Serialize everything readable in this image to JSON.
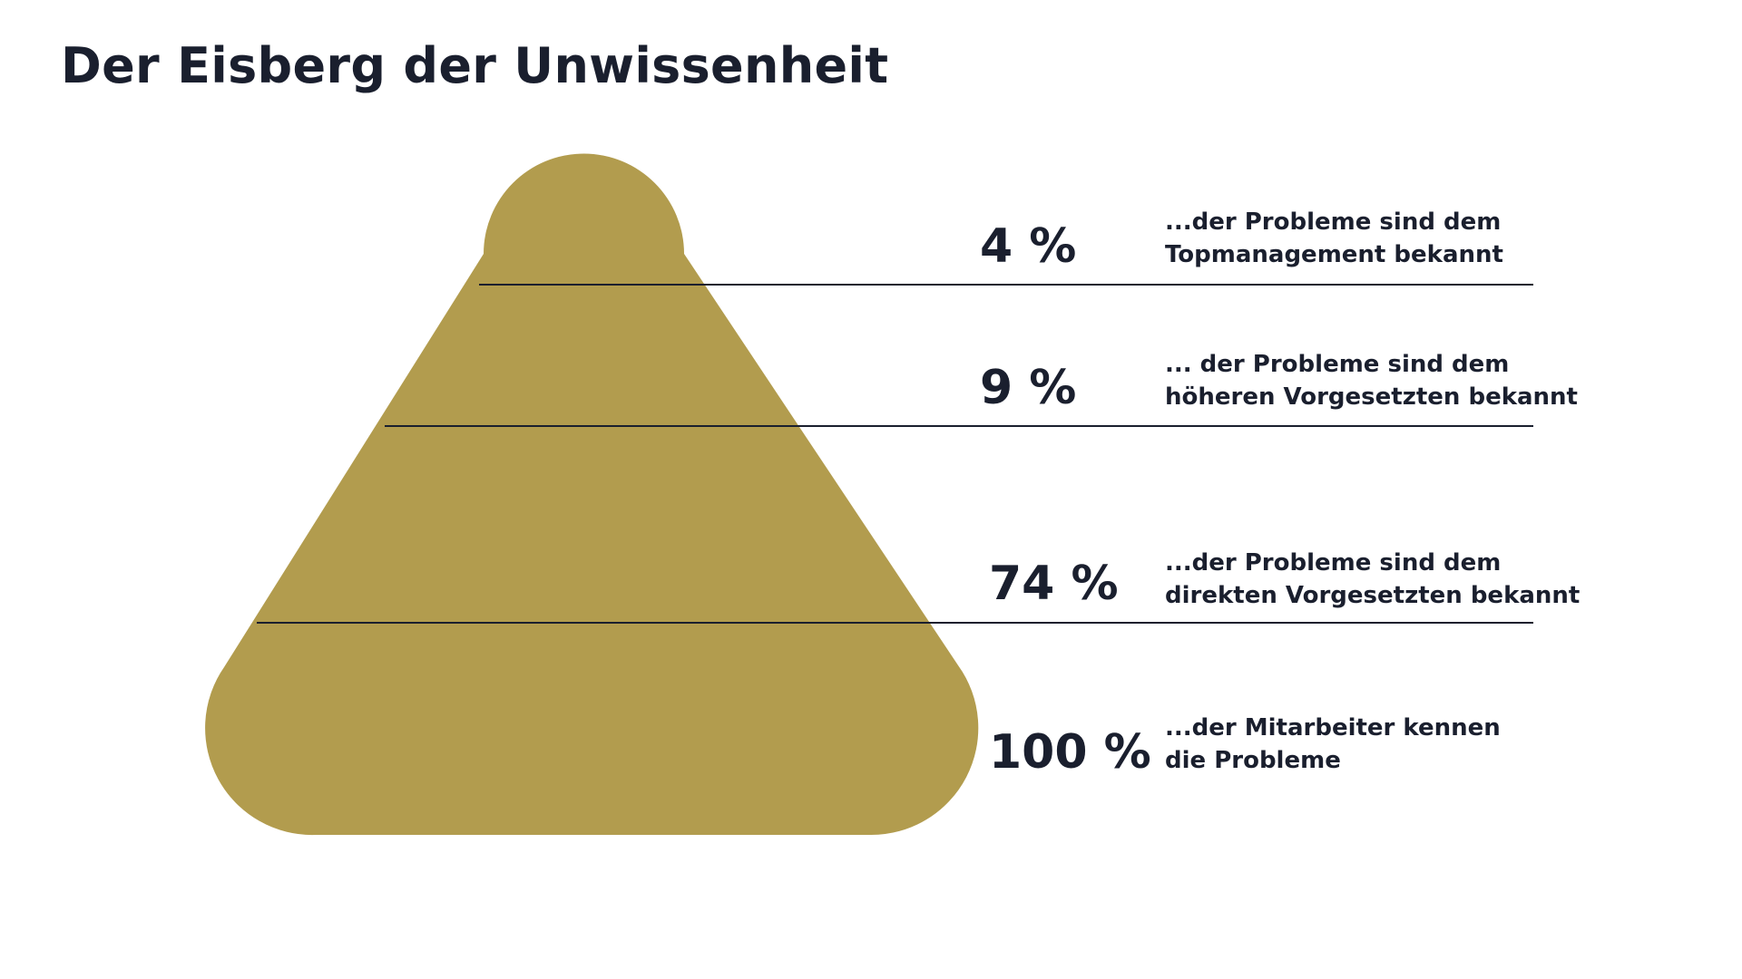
{
  "title": "Der Eisberg der Unwissenheit",
  "colors": {
    "iceberg": "#b29c4e",
    "text": "#1a1f2e",
    "divider": "#1a1f2e",
    "background": "#ffffff"
  },
  "levels": [
    {
      "percent": "4 %",
      "line1": "...der Probleme sind dem",
      "line2": "Topmanagement bekannt"
    },
    {
      "percent": "9 %",
      "line1": "... der Probleme sind dem",
      "line2": "höheren Vorgesetzten bekannt"
    },
    {
      "percent": "74 %",
      "line1": "...der Probleme sind dem",
      "line2": "direkten Vorgesetzten bekannt"
    },
    {
      "percent": "100 %",
      "line1": "...der Mitarbeiter kennen",
      "line2": "die Probleme"
    }
  ]
}
